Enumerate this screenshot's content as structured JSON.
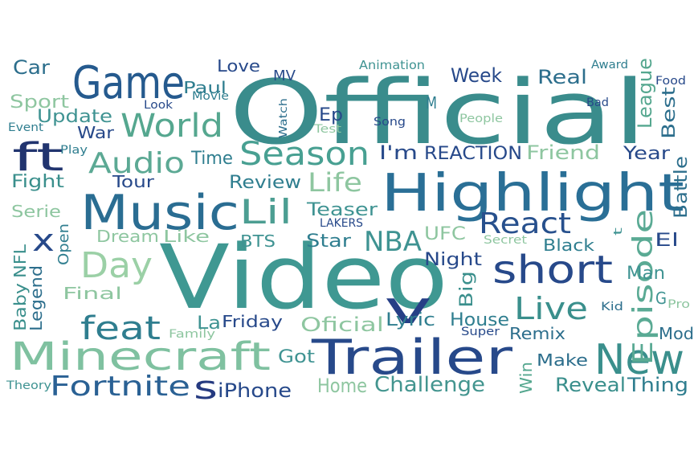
{
  "words": [
    {
      "text": "Official",
      "color": "#3a8c8c"
    },
    {
      "text": "Video",
      "color": "#3f9892"
    },
    {
      "text": "Highlight",
      "color": "#2a6f96"
    },
    {
      "text": "Game",
      "color": "#255a8e"
    },
    {
      "text": "Music",
      "color": "#2a6d92"
    },
    {
      "text": "Trailer",
      "color": "#27498a"
    },
    {
      "text": "Minecraft",
      "color": "#7fc1a0"
    },
    {
      "text": "New",
      "color": "#3a8f8c"
    },
    {
      "text": "v",
      "color": "#263f86"
    },
    {
      "text": "short",
      "color": "#27498a"
    },
    {
      "text": "World",
      "color": "#55a78f"
    },
    {
      "text": "Season",
      "color": "#48a092"
    },
    {
      "text": "ft",
      "color": "#21346f"
    },
    {
      "text": "Day",
      "color": "#9bd0a6"
    },
    {
      "text": "feat",
      "color": "#2f7e8f"
    },
    {
      "text": "Lil",
      "color": "#4c9e92"
    },
    {
      "text": "Audio",
      "color": "#5ca994"
    },
    {
      "text": "Fortnite",
      "color": "#2a6194"
    },
    {
      "text": "Live",
      "color": "#3a8f8c"
    },
    {
      "text": "Episode",
      "color": "#5aaa94"
    },
    {
      "text": "React",
      "color": "#27508d"
    },
    {
      "text": "NBA",
      "color": "#3f9392"
    },
    {
      "text": "Life",
      "color": "#8ec6a0"
    },
    {
      "text": "s",
      "color": "#253a80"
    },
    {
      "text": "x",
      "color": "#27498a"
    },
    {
      "text": "Challenge",
      "color": "#43958f"
    },
    {
      "text": "Reveal",
      "color": "#3a8f8c"
    },
    {
      "text": "Thing",
      "color": "#2f7e8f"
    },
    {
      "text": "iPhone",
      "color": "#27498a"
    },
    {
      "text": "Home",
      "color": "#8ec6a0"
    },
    {
      "text": "Week",
      "color": "#27498a"
    },
    {
      "text": "Real",
      "color": "#2c6e8c"
    },
    {
      "text": "League",
      "color": "#55a78f"
    },
    {
      "text": "Best",
      "color": "#2c6e8c"
    },
    {
      "text": "Battle",
      "color": "#2c6e8c"
    },
    {
      "text": "Friend",
      "color": "#8ec6a0"
    },
    {
      "text": "Year",
      "color": "#27498a"
    },
    {
      "text": "REACTION",
      "color": "#27498a"
    },
    {
      "text": "I'm",
      "color": "#27498a"
    },
    {
      "text": "Review",
      "color": "#2f7e8f"
    },
    {
      "text": "Teaser",
      "color": "#3f9392"
    },
    {
      "text": "UFC",
      "color": "#8ec6a0"
    },
    {
      "text": "Night",
      "color": "#27498a"
    },
    {
      "text": "Black",
      "color": "#2f7e8f"
    },
    {
      "text": "El",
      "color": "#27498a"
    },
    {
      "text": "Man",
      "color": "#3f9392"
    },
    {
      "text": "Mod",
      "color": "#2c6e8c"
    },
    {
      "text": "Big",
      "color": "#3a8f8c"
    },
    {
      "text": "House",
      "color": "#2f7e8f"
    },
    {
      "text": "Remix",
      "color": "#2c6e8c"
    },
    {
      "text": "Make",
      "color": "#2c6e8c"
    },
    {
      "text": "Win",
      "color": "#55a78f"
    },
    {
      "text": "Lyric",
      "color": "#2f7e8f"
    },
    {
      "text": "Oficial",
      "color": "#8ec6a0"
    },
    {
      "text": "Got",
      "color": "#3f9392"
    },
    {
      "text": "Friday",
      "color": "#27498a"
    },
    {
      "text": "La",
      "color": "#3f9392"
    },
    {
      "text": "Star",
      "color": "#2f7e8f"
    },
    {
      "text": "BTS",
      "color": "#3f9392"
    },
    {
      "text": "Like",
      "color": "#8ec6a0"
    },
    {
      "text": "Dream",
      "color": "#8ec6a0"
    },
    {
      "text": "Serie",
      "color": "#8ec6a0"
    },
    {
      "text": "Fight",
      "color": "#3a8f8c"
    },
    {
      "text": "Tour",
      "color": "#27498a"
    },
    {
      "text": "Time",
      "color": "#2f7e8f"
    },
    {
      "text": "Update",
      "color": "#3f9392"
    },
    {
      "text": "War",
      "color": "#27498a"
    },
    {
      "text": "Sport",
      "color": "#8ec6a0"
    },
    {
      "text": "Car",
      "color": "#2c6e8c"
    },
    {
      "text": "Paul",
      "color": "#2f7e8f"
    },
    {
      "text": "Love",
      "color": "#27498a"
    },
    {
      "text": "MV",
      "color": "#27498a"
    },
    {
      "text": "Ep",
      "color": "#27498a"
    },
    {
      "text": "M",
      "color": "#2f7e8f"
    },
    {
      "text": "Baby",
      "color": "#3a8f8c"
    },
    {
      "text": "NFL",
      "color": "#3a8f8c"
    },
    {
      "text": "Legend",
      "color": "#2c6e8c"
    },
    {
      "text": "Open",
      "color": "#2f7e8f"
    },
    {
      "text": "Final",
      "color": "#8ec6a0"
    },
    {
      "text": "G",
      "color": "#3f9392"
    },
    {
      "text": "Pro",
      "color": "#8ec6a0"
    },
    {
      "text": "Kid",
      "color": "#2c6e8c"
    },
    {
      "text": "Super",
      "color": "#27498a"
    },
    {
      "text": "Family",
      "color": "#8ec6a0"
    },
    {
      "text": "Theory",
      "color": "#3f9392"
    },
    {
      "text": "Secret",
      "color": "#8ec6a0"
    },
    {
      "text": "LAKERS",
      "color": "#27498a"
    },
    {
      "text": "t",
      "color": "#3f9392"
    },
    {
      "text": "Animation",
      "color": "#3f9392"
    },
    {
      "text": "Award",
      "color": "#2f7e8f"
    },
    {
      "text": "Food",
      "color": "#27498a"
    },
    {
      "text": "Bad",
      "color": "#27498a"
    },
    {
      "text": "People",
      "color": "#8ec6a0"
    },
    {
      "text": "Song",
      "color": "#27498a"
    },
    {
      "text": "Test",
      "color": "#8ec6a0"
    },
    {
      "text": "Watch",
      "color": "#2c6e8c"
    },
    {
      "text": "Look",
      "color": "#27498a"
    },
    {
      "text": "Movie",
      "color": "#2f7e8f"
    },
    {
      "text": "Event",
      "color": "#2f7e8f"
    },
    {
      "text": "Play",
      "color": "#2f7e8f"
    }
  ]
}
